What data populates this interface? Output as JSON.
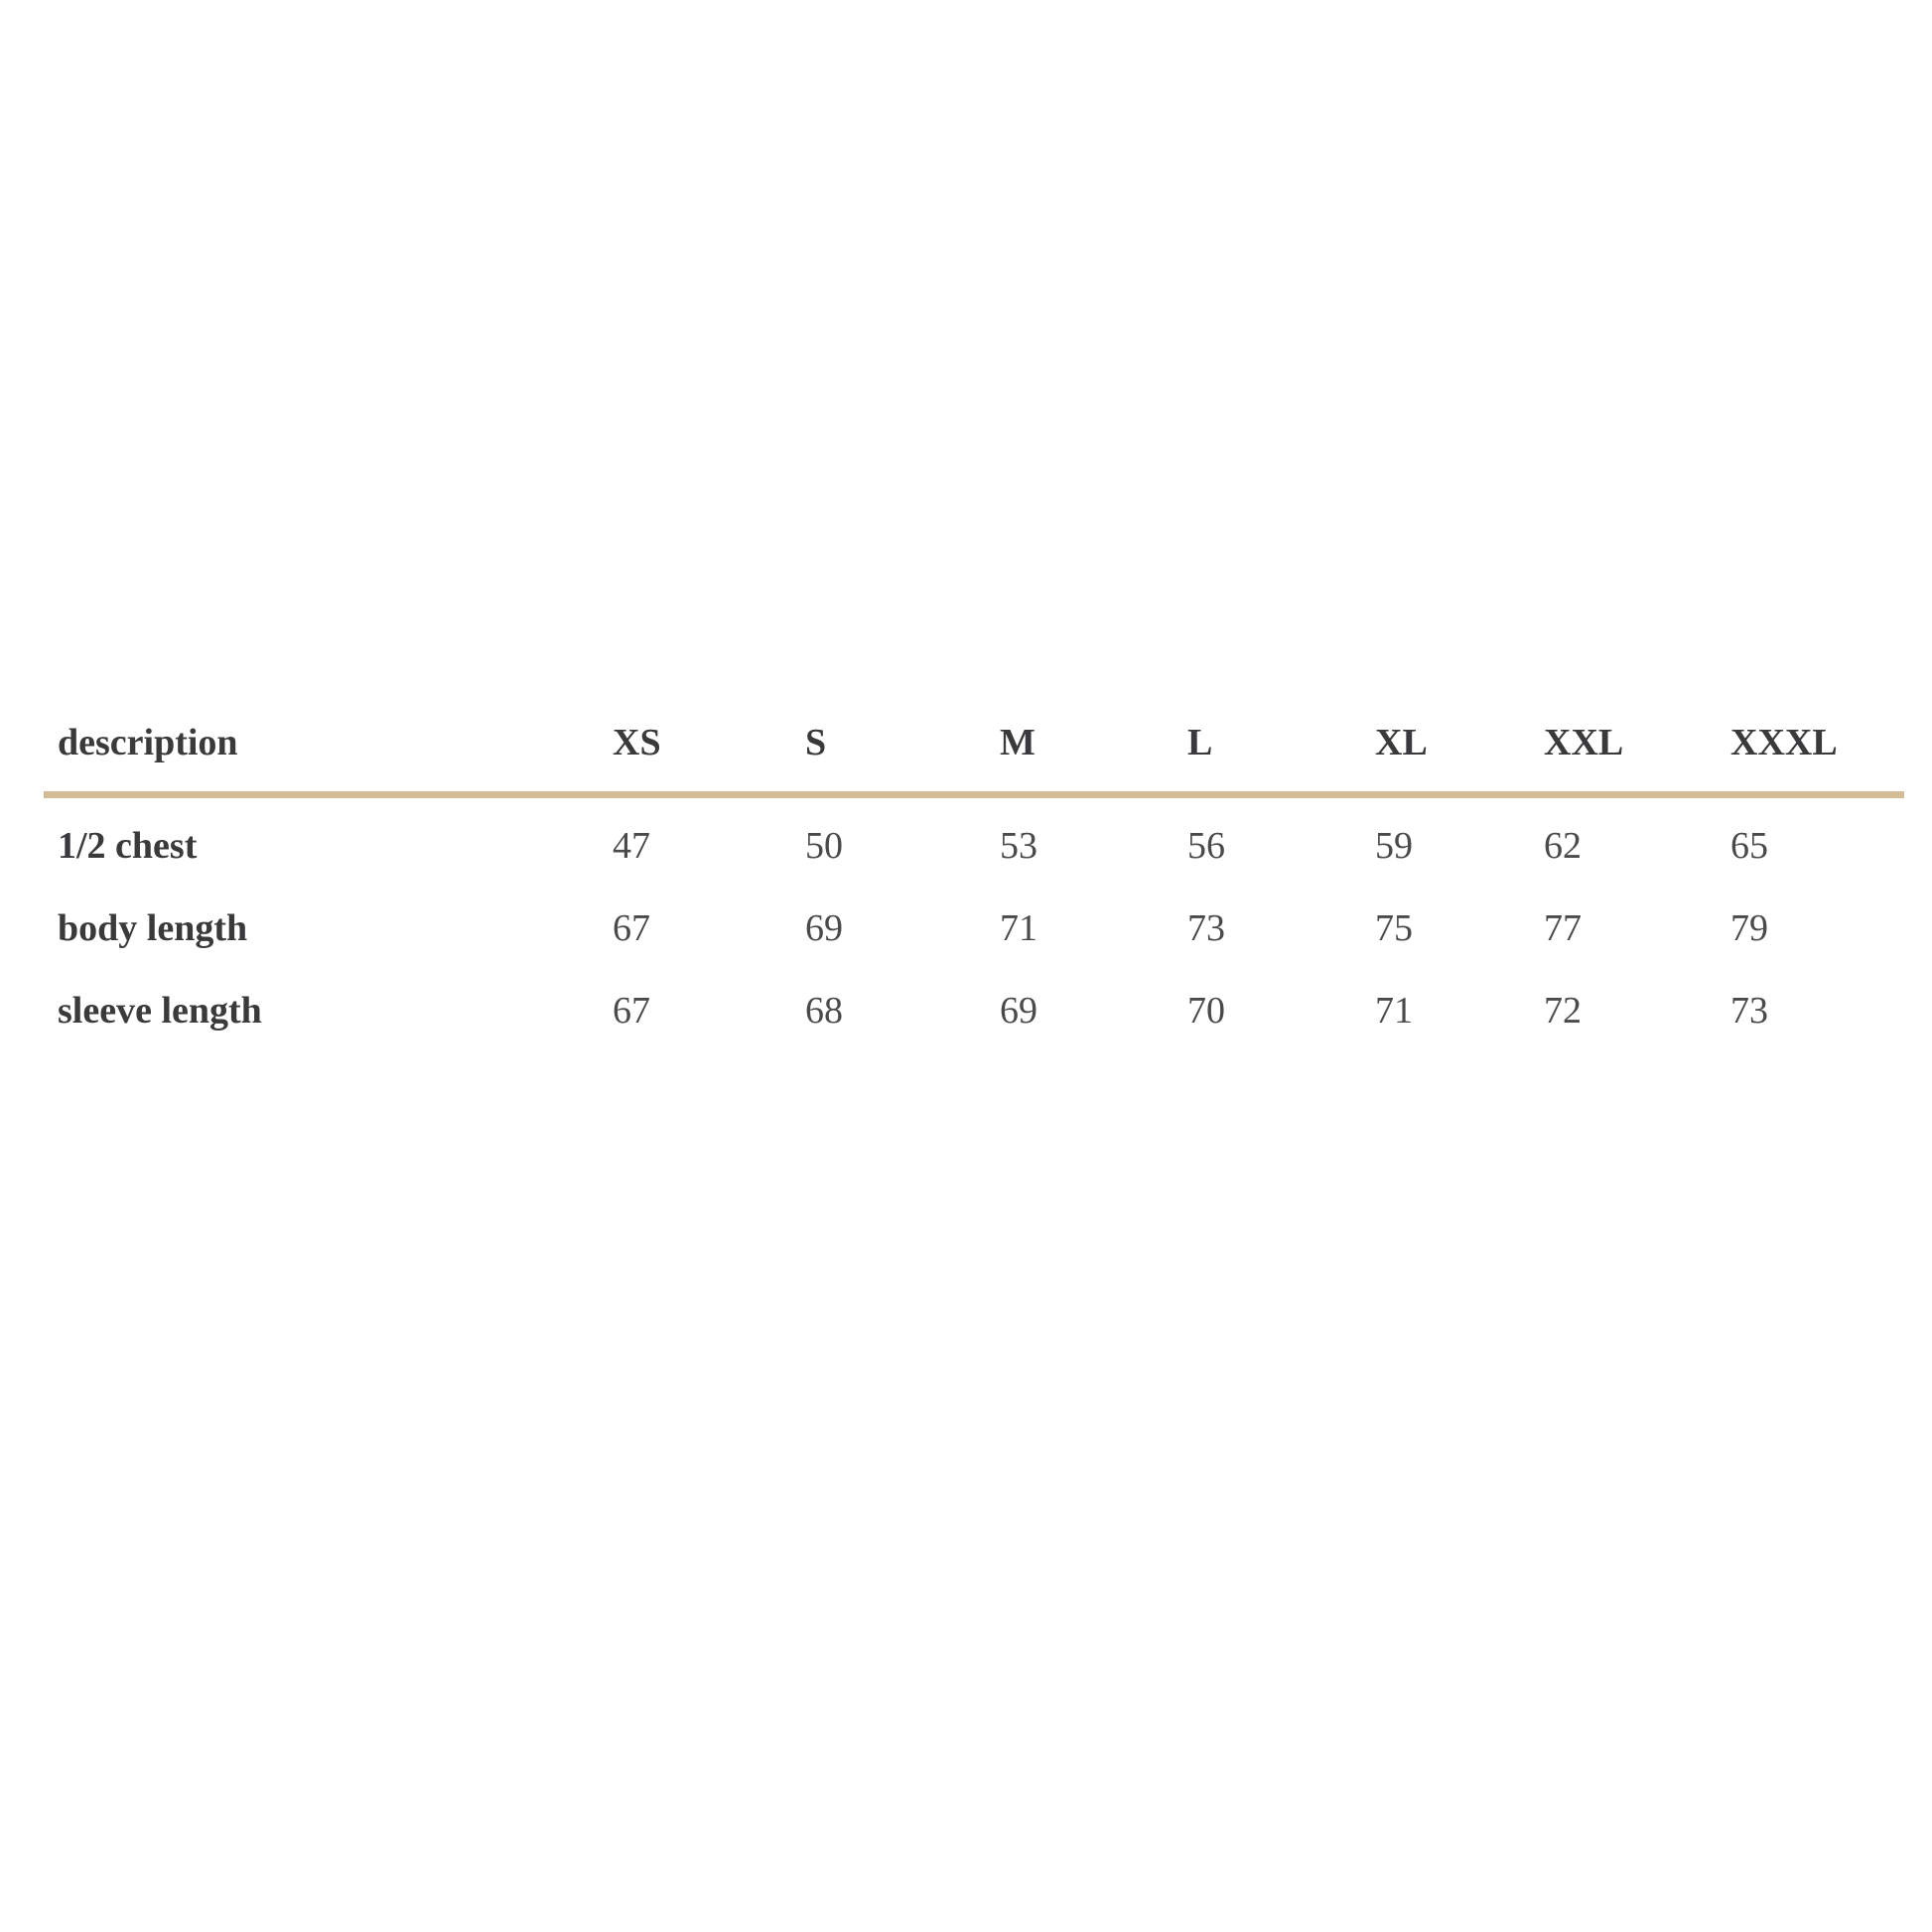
{
  "chart_data": {
    "type": "table",
    "columns": [
      "description",
      "XS",
      "S",
      "M",
      "L",
      "XL",
      "XXL",
      "XXXL"
    ],
    "rows": [
      {
        "label": "1/2 chest",
        "values": [
          "47",
          "50",
          "53",
          "56",
          "59",
          "62",
          "65"
        ]
      },
      {
        "label": "body length",
        "values": [
          "67",
          "69",
          "71",
          "73",
          "75",
          "77",
          "79"
        ]
      },
      {
        "label": "sleeve length",
        "values": [
          "67",
          "68",
          "69",
          "70",
          "71",
          "72",
          "73"
        ]
      }
    ]
  },
  "colors": {
    "divider": "#d2bc95",
    "header_text": "#3a3a3c",
    "value_text": "#4a4a4c",
    "background": "#ffffff"
  }
}
